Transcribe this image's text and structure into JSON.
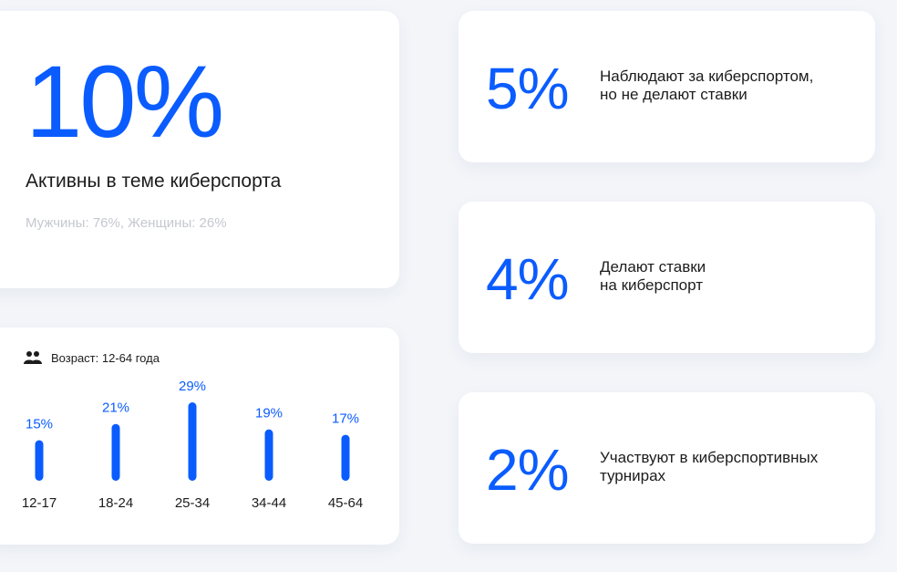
{
  "main": {
    "percent": "10%",
    "label": "Активны в теме киберспорта",
    "subtitle": "Мужчины: 76%, Женщины: 26%"
  },
  "age": {
    "title": "Возраст: 12-64 года",
    "icon": "users-icon"
  },
  "stats": [
    {
      "percent": "5%",
      "desc": "Наблюдают за киберспортом,\nно не делают ставки"
    },
    {
      "percent": "4%",
      "desc": "Делают ставки\nна киберспорт"
    },
    {
      "percent": "2%",
      "desc": "Участвуют в киберспортивных\nтурнирах"
    }
  ],
  "colors": {
    "accent": "#0a5cff",
    "text": "#1c1c1c",
    "muted": "#c5c8cf",
    "background": "#f3f5f9"
  },
  "chart_data": {
    "type": "bar",
    "categories": [
      "12-17",
      "18-24",
      "25-34",
      "34-44",
      "45-64"
    ],
    "values": [
      15,
      21,
      29,
      19,
      17
    ],
    "value_labels": [
      "15%",
      "21%",
      "29%",
      "19%",
      "17%"
    ],
    "ylim": [
      0,
      29
    ],
    "grid": false,
    "title": "Возраст: 12-64 года",
    "xlabel": "",
    "ylabel": ""
  }
}
